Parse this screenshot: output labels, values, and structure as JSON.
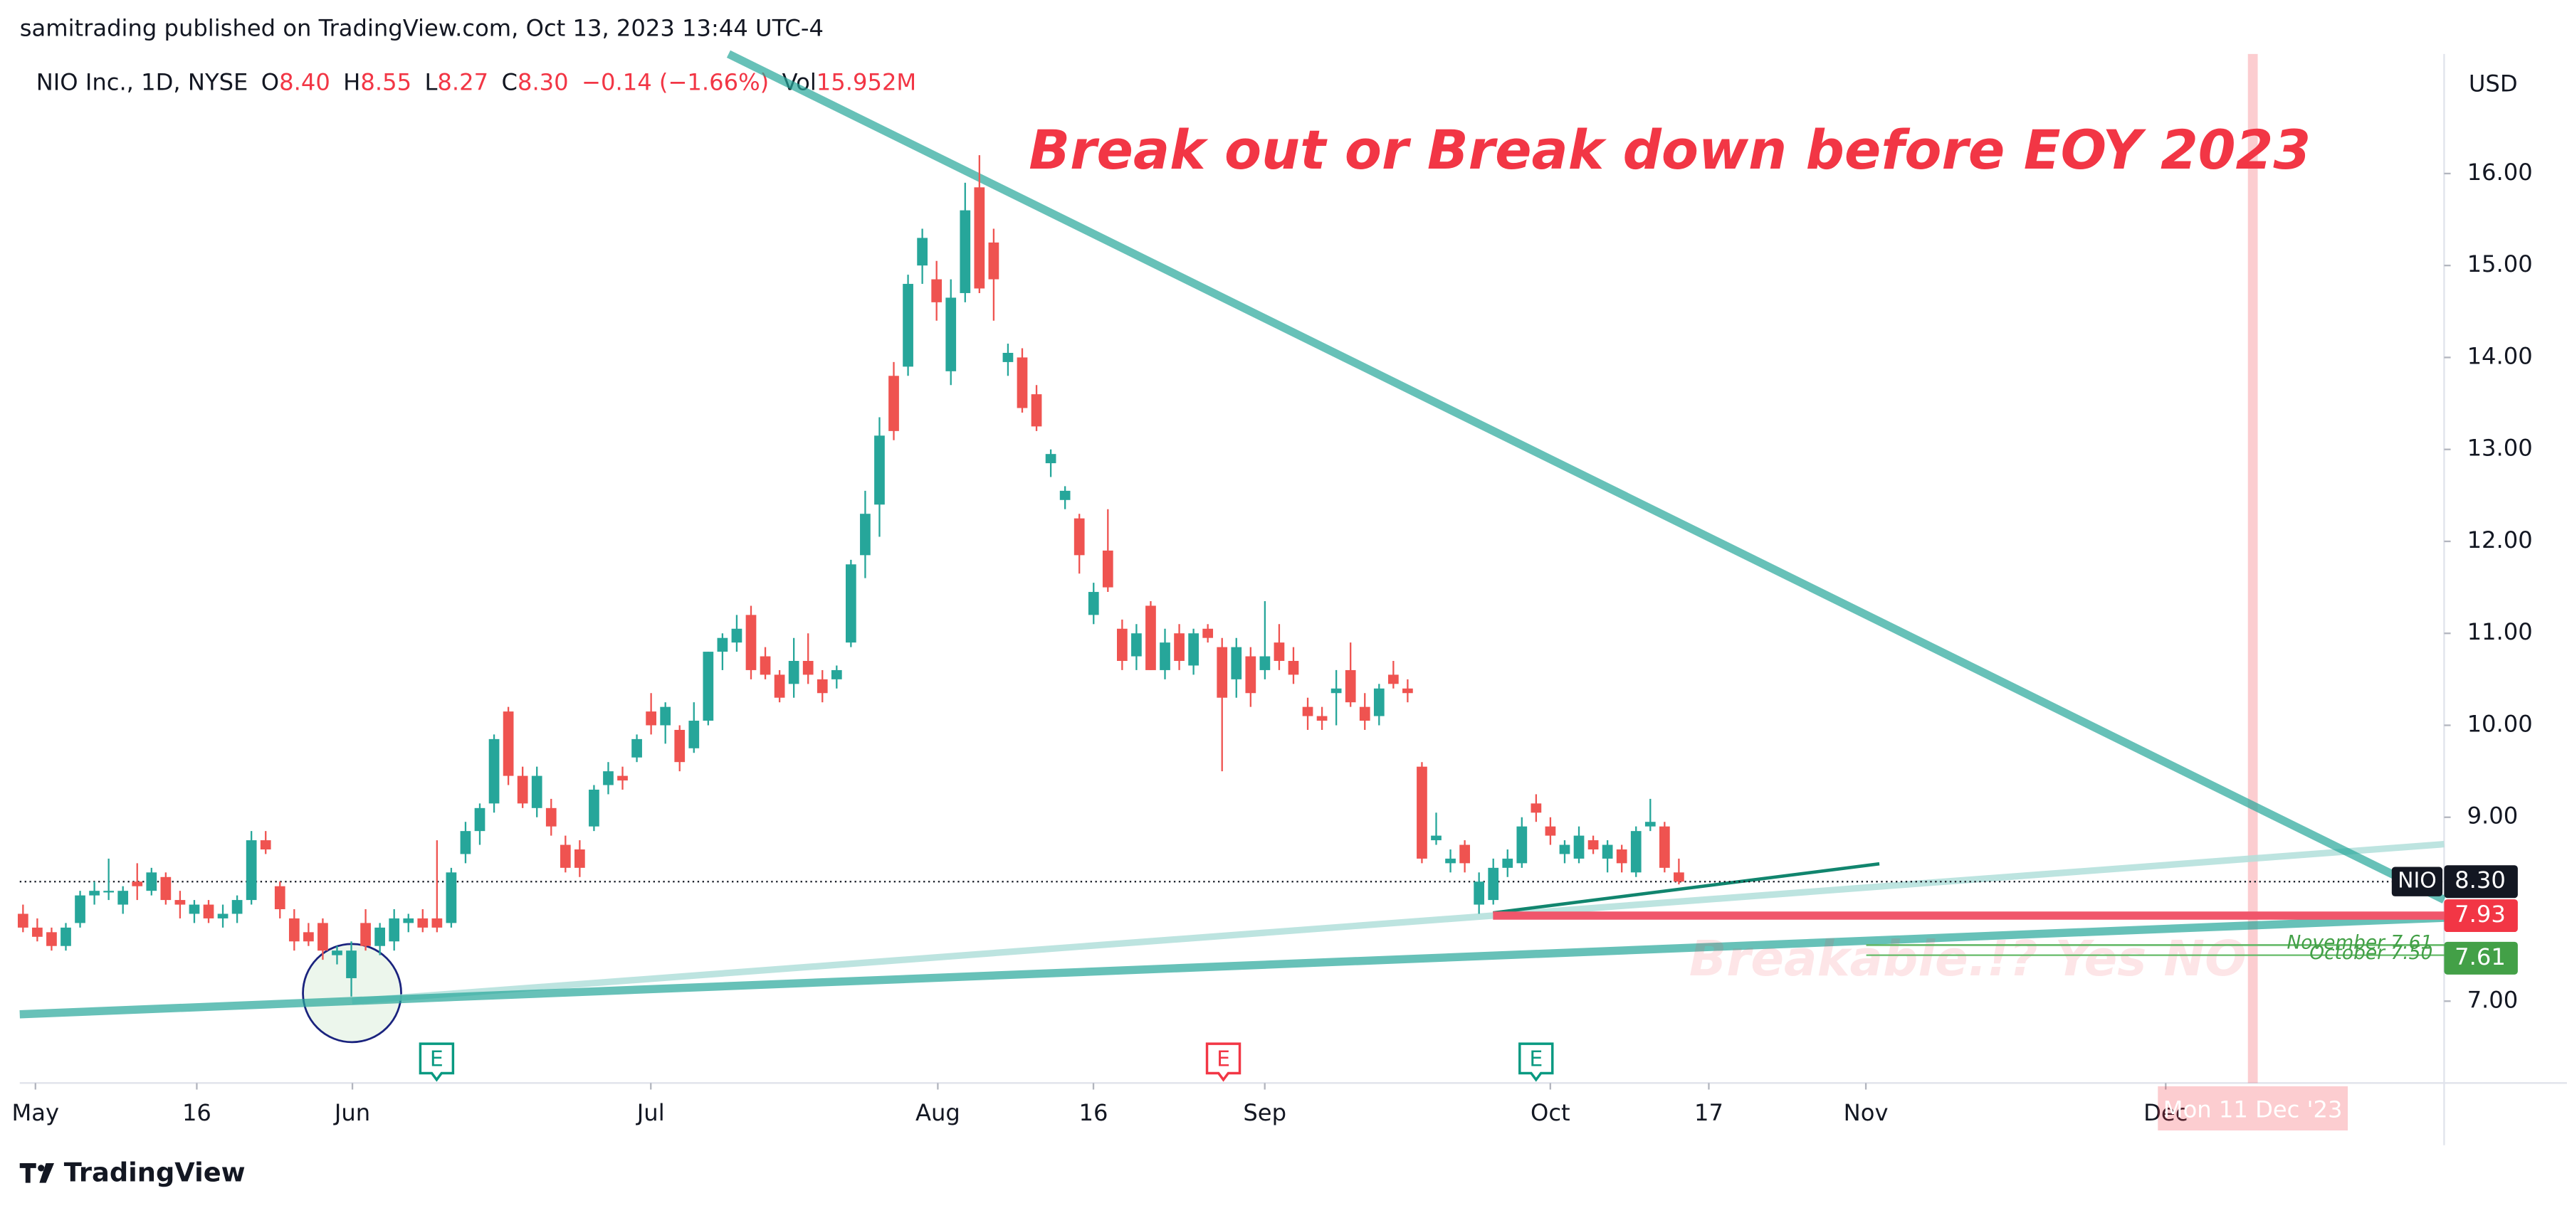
{
  "header": {
    "published": "samitrading published on TradingView.com, Oct 13, 2023 13:44 UTC-4",
    "legend": {
      "symbol": "NIO Inc., 1D, NYSE",
      "open_key": "O",
      "open": "8.40",
      "high_key": "H",
      "high": "8.55",
      "low_key": "L",
      "low": "8.27",
      "close_key": "C",
      "close": "8.30",
      "change": "−0.14 (−1.66%)",
      "volume_key": "Vol",
      "volume": "15.952M"
    }
  },
  "footer": {
    "brand": "TradingView"
  },
  "chart_data": {
    "type": "candlestick",
    "up_color": "#26a69a",
    "down_color": "#ef5350",
    "ohlc": [
      [
        7.95,
        8.05,
        7.75,
        7.8
      ],
      [
        7.8,
        7.9,
        7.65,
        7.7
      ],
      [
        7.75,
        7.8,
        7.55,
        7.6
      ],
      [
        7.6,
        7.85,
        7.55,
        7.8
      ],
      [
        7.85,
        8.2,
        7.8,
        8.15
      ],
      [
        8.15,
        8.3,
        8.05,
        8.2
      ],
      [
        8.2,
        8.55,
        8.1,
        8.2
      ],
      [
        8.05,
        8.25,
        7.95,
        8.2
      ],
      [
        8.3,
        8.5,
        8.1,
        8.25
      ],
      [
        8.2,
        8.45,
        8.15,
        8.4
      ],
      [
        8.35,
        8.4,
        8.05,
        8.1
      ],
      [
        8.1,
        8.2,
        7.9,
        8.05
      ],
      [
        7.95,
        8.1,
        7.85,
        8.05
      ],
      [
        8.05,
        8.1,
        7.85,
        7.9
      ],
      [
        7.9,
        8.05,
        7.8,
        7.95
      ],
      [
        7.95,
        8.15,
        7.85,
        8.1
      ],
      [
        8.1,
        8.85,
        8.05,
        8.75
      ],
      [
        8.75,
        8.85,
        8.6,
        8.65
      ],
      [
        8.25,
        8.3,
        7.9,
        8.0
      ],
      [
        7.9,
        8.0,
        7.55,
        7.65
      ],
      [
        7.75,
        7.85,
        7.6,
        7.65
      ],
      [
        7.85,
        7.9,
        7.45,
        7.55
      ],
      [
        7.5,
        7.6,
        7.4,
        7.55
      ],
      [
        7.25,
        7.65,
        7.05,
        7.55
      ],
      [
        7.85,
        8.0,
        7.55,
        7.6
      ],
      [
        7.6,
        7.85,
        7.5,
        7.8
      ],
      [
        7.65,
        8.0,
        7.55,
        7.9
      ],
      [
        7.85,
        7.95,
        7.75,
        7.9
      ],
      [
        7.9,
        8.0,
        7.75,
        7.8
      ],
      [
        7.9,
        8.75,
        7.75,
        7.8
      ],
      [
        7.85,
        8.45,
        7.8,
        8.4
      ],
      [
        8.6,
        8.95,
        8.5,
        8.85
      ],
      [
        8.85,
        9.15,
        8.7,
        9.1
      ],
      [
        9.15,
        9.9,
        9.05,
        9.85
      ],
      [
        10.15,
        10.2,
        9.35,
        9.45
      ],
      [
        9.45,
        9.55,
        9.1,
        9.15
      ],
      [
        9.1,
        9.55,
        9.0,
        9.45
      ],
      [
        9.1,
        9.2,
        8.8,
        8.9
      ],
      [
        8.7,
        8.8,
        8.4,
        8.45
      ],
      [
        8.65,
        8.75,
        8.35,
        8.45
      ],
      [
        8.9,
        9.35,
        8.85,
        9.3
      ],
      [
        9.35,
        9.6,
        9.25,
        9.5
      ],
      [
        9.45,
        9.55,
        9.3,
        9.4
      ],
      [
        9.65,
        9.9,
        9.6,
        9.85
      ],
      [
        10.15,
        10.35,
        9.9,
        10.0
      ],
      [
        10.0,
        10.25,
        9.8,
        10.2
      ],
      [
        9.95,
        10.0,
        9.5,
        9.6
      ],
      [
        9.75,
        10.25,
        9.7,
        10.05
      ],
      [
        10.05,
        10.8,
        10.0,
        10.8
      ],
      [
        10.8,
        11.0,
        10.6,
        10.95
      ],
      [
        10.9,
        11.2,
        10.8,
        11.05
      ],
      [
        11.2,
        11.3,
        10.5,
        10.6
      ],
      [
        10.75,
        10.85,
        10.5,
        10.55
      ],
      [
        10.55,
        10.6,
        10.25,
        10.3
      ],
      [
        10.45,
        10.95,
        10.3,
        10.7
      ],
      [
        10.7,
        11.0,
        10.45,
        10.55
      ],
      [
        10.5,
        10.6,
        10.25,
        10.35
      ],
      [
        10.5,
        10.65,
        10.4,
        10.6
      ],
      [
        10.9,
        11.8,
        10.85,
        11.75
      ],
      [
        11.85,
        12.55,
        11.6,
        12.3
      ],
      [
        12.4,
        13.35,
        12.05,
        13.15
      ],
      [
        13.8,
        13.95,
        13.1,
        13.2
      ],
      [
        13.9,
        14.9,
        13.8,
        14.8
      ],
      [
        15.0,
        15.4,
        14.8,
        15.3
      ],
      [
        14.85,
        15.05,
        14.4,
        14.6
      ],
      [
        13.85,
        14.85,
        13.7,
        14.65
      ],
      [
        14.7,
        15.9,
        14.6,
        15.6
      ],
      [
        15.85,
        16.2,
        14.7,
        14.75
      ],
      [
        15.25,
        15.4,
        14.4,
        14.85
      ],
      [
        13.95,
        14.15,
        13.8,
        14.05
      ],
      [
        14.0,
        14.1,
        13.4,
        13.45
      ],
      [
        13.6,
        13.7,
        13.2,
        13.25
      ],
      [
        12.85,
        13.0,
        12.7,
        12.95
      ],
      [
        12.45,
        12.6,
        12.35,
        12.55
      ],
      [
        12.25,
        12.3,
        11.65,
        11.85
      ],
      [
        11.2,
        11.55,
        11.1,
        11.45
      ],
      [
        11.9,
        12.35,
        11.45,
        11.5
      ],
      [
        11.05,
        11.15,
        10.6,
        10.7
      ],
      [
        10.75,
        11.1,
        10.6,
        11.0
      ],
      [
        11.3,
        11.35,
        10.6,
        10.6
      ],
      [
        10.6,
        11.05,
        10.5,
        10.9
      ],
      [
        11.0,
        11.1,
        10.6,
        10.7
      ],
      [
        10.65,
        11.05,
        10.55,
        11.0
      ],
      [
        11.05,
        11.1,
        10.9,
        10.95
      ],
      [
        10.85,
        10.95,
        9.5,
        10.3
      ],
      [
        10.5,
        10.95,
        10.3,
        10.85
      ],
      [
        10.75,
        10.85,
        10.2,
        10.35
      ],
      [
        10.6,
        11.35,
        10.5,
        10.75
      ],
      [
        10.9,
        11.1,
        10.6,
        10.7
      ],
      [
        10.7,
        10.85,
        10.45,
        10.55
      ],
      [
        10.2,
        10.3,
        9.95,
        10.1
      ],
      [
        10.1,
        10.2,
        9.95,
        10.05
      ],
      [
        10.35,
        10.6,
        10.0,
        10.4
      ],
      [
        10.6,
        10.9,
        10.2,
        10.25
      ],
      [
        10.2,
        10.35,
        9.95,
        10.05
      ],
      [
        10.1,
        10.45,
        10.0,
        10.4
      ],
      [
        10.55,
        10.7,
        10.4,
        10.45
      ],
      [
        10.4,
        10.5,
        10.25,
        10.35
      ],
      [
        9.55,
        9.6,
        8.5,
        8.55
      ],
      [
        8.75,
        9.05,
        8.7,
        8.8
      ],
      [
        8.5,
        8.65,
        8.4,
        8.55
      ],
      [
        8.7,
        8.75,
        8.4,
        8.5
      ],
      [
        8.05,
        8.4,
        7.95,
        8.3
      ],
      [
        8.1,
        8.55,
        8.05,
        8.45
      ],
      [
        8.45,
        8.65,
        8.35,
        8.55
      ],
      [
        8.5,
        9.0,
        8.45,
        8.9
      ],
      [
        9.15,
        9.25,
        8.95,
        9.05
      ],
      [
        8.9,
        9.0,
        8.7,
        8.8
      ],
      [
        8.6,
        8.75,
        8.5,
        8.7
      ],
      [
        8.55,
        8.9,
        8.5,
        8.8
      ],
      [
        8.75,
        8.8,
        8.6,
        8.65
      ],
      [
        8.55,
        8.75,
        8.4,
        8.7
      ],
      [
        8.65,
        8.7,
        8.4,
        8.5
      ],
      [
        8.4,
        8.9,
        8.35,
        8.85
      ],
      [
        8.9,
        9.2,
        8.85,
        8.95
      ],
      [
        8.9,
        8.95,
        8.4,
        8.45
      ],
      [
        8.4,
        8.55,
        8.27,
        8.3
      ]
    ],
    "xlim": [
      -0.2,
      169.6
    ],
    "ylim": [
      6.11,
      17.3
    ],
    "xticks": [
      {
        "value": 0.9,
        "label": "May"
      },
      {
        "value": 12.2,
        "label": "16"
      },
      {
        "value": 23.1,
        "label": "Jun"
      },
      {
        "value": 44.0,
        "label": "Jul"
      },
      {
        "value": 64.1,
        "label": "Aug"
      },
      {
        "value": 75.0,
        "label": "16"
      },
      {
        "value": 87.0,
        "label": "Sep"
      },
      {
        "value": 107.0,
        "label": "Oct"
      },
      {
        "value": 118.1,
        "label": "17"
      },
      {
        "value": 129.1,
        "label": "Nov"
      },
      {
        "value": 150.1,
        "label": "Dec"
      }
    ],
    "yticks": [
      {
        "value": 7,
        "label": "7.00"
      },
      {
        "value": 9,
        "label": "9.00"
      },
      {
        "value": 10,
        "label": "10.00"
      },
      {
        "value": 11,
        "label": "11.00"
      },
      {
        "value": 12,
        "label": "12.00"
      },
      {
        "value": 13,
        "label": "13.00"
      },
      {
        "value": 14,
        "label": "14.00"
      },
      {
        "value": 15,
        "label": "15.00"
      },
      {
        "value": 16,
        "label": "16.00"
      }
    ],
    "currency": "USD",
    "symbol_tag": "NIO",
    "last_price": {
      "value": 8.3,
      "label": "8.30"
    },
    "levels": [
      {
        "value": 7.93,
        "label": "7.93",
        "color": "#f23645"
      },
      {
        "value": 7.61,
        "label": "7.61",
        "color": "#43a047"
      }
    ],
    "level_notes": [
      {
        "value": 7.61,
        "label": "November 7.61"
      },
      {
        "value": 7.5,
        "label": "October 7.50"
      }
    ],
    "headline": "Break out or Break down before EOY 2023",
    "faint_note": "Breakable.!? Yes NO",
    "cursor": {
      "value": 156.2,
      "label": "Mon 11 Dec '23"
    },
    "events": [
      {
        "value": 29.0,
        "label": "E",
        "color": "#089981"
      },
      {
        "value": 84.1,
        "label": "E",
        "color": "#f23645"
      },
      {
        "value": 106.0,
        "label": "E",
        "color": "#089981"
      }
    ]
  }
}
